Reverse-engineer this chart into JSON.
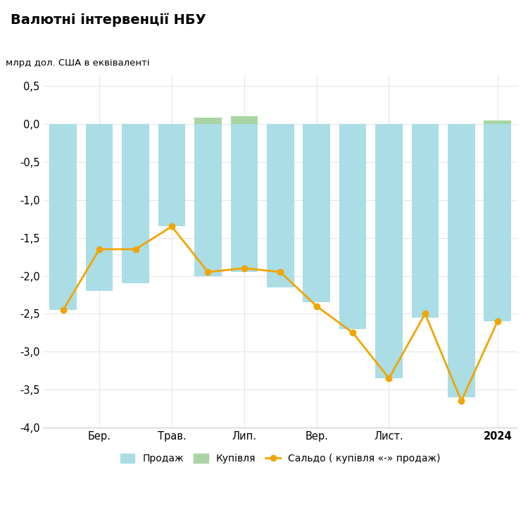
{
  "title": "Валютні інтервенції НБУ",
  "ylabel": "млрд дол. США в еквіваленті",
  "months_count": 13,
  "x_tick_labels": [
    "Бер.",
    "Трав.",
    "Лип.",
    "Вер.",
    "Лист.",
    "2024"
  ],
  "x_tick_positions": [
    1,
    3,
    5,
    7,
    9,
    12
  ],
  "sell_values": [
    -2.45,
    -2.2,
    -2.1,
    -1.35,
    -2.0,
    -1.95,
    -2.15,
    -2.35,
    -2.7,
    -3.35,
    -2.55,
    -3.6,
    -2.6
  ],
  "buy_values": [
    0.0,
    0.0,
    0.0,
    0.0,
    0.08,
    0.1,
    0.0,
    0.0,
    0.0,
    0.0,
    0.0,
    0.0,
    0.05
  ],
  "saldo": [
    -2.45,
    -1.65,
    -1.65,
    -1.35,
    -1.95,
    -1.9,
    -1.95,
    -2.4,
    -2.75,
    -3.35,
    -2.5,
    -3.65,
    -2.6
  ],
  "sell_color": "#aadde6",
  "buy_color": "#a8d5a2",
  "line_color": "#f0a500",
  "background_color": "#ffffff",
  "grid_color": "#e5e5e5",
  "ylim": [
    -4.0,
    0.65
  ],
  "yticks": [
    0.5,
    0.0,
    -0.5,
    -1.0,
    -1.5,
    -2.0,
    -2.5,
    -3.0,
    -3.5,
    -4.0
  ],
  "ytick_labels": [
    "0,5",
    "0,0",
    "-0,5",
    "-1,0",
    "-1,5",
    "-2,0",
    "-2,5",
    "-3,0",
    "-3,5",
    "-4,0"
  ],
  "legend_sell": "Продаж",
  "legend_buy": "Купівля",
  "legend_saldo": "Сальдо ( купівля «-» продаж)"
}
